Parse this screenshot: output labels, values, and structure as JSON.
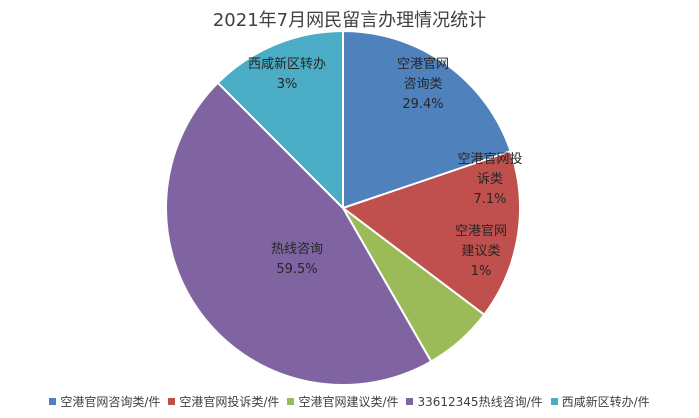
{
  "chart_data": {
    "type": "pie",
    "title": "2021年7月网民留言办理情况统计",
    "slices": [
      {
        "legend": "空港官网咨询类/件",
        "label_lines": [
          "空港官网",
          "咨询类",
          "29.4%"
        ],
        "value": 29.4,
        "display_share": 0.198,
        "color": "#4F81BD"
      },
      {
        "legend": "空港官网投诉类/件",
        "label_lines": [
          "空港官网投",
          "诉类",
          "7.1%"
        ],
        "value": 7.1,
        "display_share": 0.155,
        "color": "#C0504D"
      },
      {
        "legend": "空港官网建议类/件",
        "label_lines": [
          "空港官网",
          "建议类",
          "1%"
        ],
        "value": 1,
        "display_share": 0.064,
        "color": "#9BBB59"
      },
      {
        "legend": "33612345热线咨询/件",
        "label_lines": [
          "热线咨询",
          "59.5%"
        ],
        "value": 59.5,
        "display_share": 0.458,
        "color": "#8064A2"
      },
      {
        "legend": "西咸新区转办/件",
        "label_lines": [
          "西咸新区转办",
          "3%"
        ],
        "value": 3,
        "display_share": 0.125,
        "color": "#4BACC6"
      }
    ]
  }
}
